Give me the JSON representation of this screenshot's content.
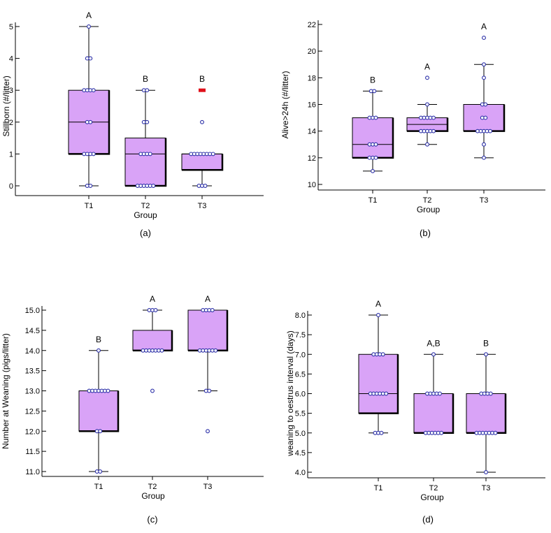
{
  "chart_data": [
    {
      "type": "box",
      "id": "a",
      "caption": "(a)",
      "xlabel": "Group",
      "ylabel": "Stillborn (#/litter)",
      "ylim": [
        0,
        5
      ],
      "yticks": [
        0,
        1,
        2,
        3,
        4,
        5
      ],
      "ytick_labels": [
        "0",
        "1",
        "2",
        "3",
        "4",
        "5"
      ],
      "categories": [
        "T1",
        "T2",
        "T3"
      ],
      "groups": [
        {
          "name": "T1",
          "q1": 1,
          "median": 2,
          "q3": 3,
          "whisker_low": 0,
          "whisker_high": 5,
          "letter": "A",
          "points": [
            0,
            0,
            1,
            1,
            1,
            1,
            2,
            2,
            3,
            3,
            3,
            3,
            4,
            4,
            5
          ]
        },
        {
          "name": "T2",
          "q1": 0,
          "median": 1,
          "q3": 1.5,
          "whisker_low": 0,
          "whisker_high": 3,
          "letter": "B",
          "points": [
            0,
            0,
            0,
            0,
            0,
            0,
            1,
            1,
            1,
            1,
            2,
            2,
            3,
            3
          ]
        },
        {
          "name": "T3",
          "q1": 0.5,
          "median": 1,
          "q3": 1,
          "whisker_low": 0,
          "whisker_high": 1,
          "letter": "B",
          "points": [
            0,
            0,
            0,
            1,
            1,
            1,
            1,
            1,
            1,
            1,
            1,
            2
          ],
          "outliers": [
            3
          ]
        }
      ]
    },
    {
      "type": "box",
      "id": "b",
      "caption": "(b)",
      "xlabel": "Group",
      "ylabel": "Alive>24h (#/litter)",
      "ylim": [
        10,
        22
      ],
      "yticks": [
        10,
        12,
        14,
        16,
        18,
        20,
        22
      ],
      "ytick_labels": [
        "10",
        "12",
        "14",
        "16",
        "18",
        "20",
        "22"
      ],
      "categories": [
        "T1",
        "T2",
        "T3"
      ],
      "groups": [
        {
          "name": "T1",
          "q1": 12,
          "median": 13,
          "q3": 15,
          "whisker_low": 11,
          "whisker_high": 17,
          "letter": "B",
          "points": [
            11,
            12,
            12,
            12,
            13,
            13,
            13,
            15,
            15,
            15,
            17,
            17
          ]
        },
        {
          "name": "T2",
          "q1": 14,
          "median": 14.5,
          "q3": 15,
          "whisker_low": 13,
          "whisker_high": 16,
          "letter": "A",
          "points": [
            13,
            14,
            14,
            14,
            14,
            14,
            15,
            15,
            15,
            15,
            15,
            16,
            18
          ]
        },
        {
          "name": "T3",
          "q1": 14,
          "median": 14,
          "q3": 16,
          "whisker_low": 12,
          "whisker_high": 19,
          "letter": "A",
          "points": [
            12,
            13,
            14,
            14,
            14,
            14,
            14,
            15,
            15,
            16,
            16,
            18,
            19,
            21
          ]
        }
      ]
    },
    {
      "type": "box",
      "id": "c",
      "caption": "(c)",
      "xlabel": "Group",
      "ylabel": "Number at Weaning (pigs/litter)",
      "ylim": [
        11.0,
        15.0
      ],
      "yticks": [
        11.0,
        11.5,
        12.0,
        12.5,
        13.0,
        13.5,
        14.0,
        14.5,
        15.0
      ],
      "ytick_labels": [
        "11.0",
        "11.5",
        "12.0",
        "12.5",
        "13.0",
        "13.5",
        "14.0",
        "14.5",
        "15.0"
      ],
      "categories": [
        "T1",
        "T2",
        "T3"
      ],
      "groups": [
        {
          "name": "T1",
          "q1": 12,
          "median": 12,
          "q3": 13,
          "whisker_low": 11,
          "whisker_high": 14,
          "letter": "B",
          "points": [
            11,
            11,
            12,
            12,
            13,
            13,
            13,
            13,
            13,
            13,
            13,
            14
          ]
        },
        {
          "name": "T2",
          "q1": 14,
          "median": 14,
          "q3": 14.5,
          "whisker_low": 14,
          "whisker_high": 15,
          "letter": "A",
          "points": [
            13,
            14,
            14,
            14,
            14,
            14,
            14,
            14,
            15,
            15,
            15
          ]
        },
        {
          "name": "T3",
          "q1": 14,
          "median": 14,
          "q3": 15,
          "whisker_low": 13,
          "whisker_high": 15,
          "letter": "A",
          "points": [
            12,
            13,
            13,
            14,
            14,
            14,
            14,
            14,
            14,
            15,
            15,
            15,
            15
          ]
        }
      ]
    },
    {
      "type": "box",
      "id": "d",
      "caption": "(d)",
      "xlabel": "Group",
      "ylabel": "weaning to oestrus interval (days)",
      "ylim": [
        4.0,
        8.0
      ],
      "yticks": [
        4.0,
        4.5,
        5.0,
        5.5,
        6.0,
        6.5,
        7.0,
        7.5,
        8.0
      ],
      "ytick_labels": [
        "4.0",
        "4.5",
        "5.0",
        "5.5",
        "6.0",
        "6.5",
        "7.0",
        "7.5",
        "8.0"
      ],
      "categories": [
        "T1",
        "T2",
        "T3"
      ],
      "groups": [
        {
          "name": "T1",
          "q1": 5.5,
          "median": 6,
          "q3": 7,
          "whisker_low": 5,
          "whisker_high": 8,
          "letter": "A",
          "points": [
            5,
            5,
            5,
            6,
            6,
            6,
            6,
            6,
            6,
            7,
            7,
            7,
            7,
            8
          ]
        },
        {
          "name": "T2",
          "q1": 5,
          "median": 5,
          "q3": 6,
          "whisker_low": 5,
          "whisker_high": 7,
          "letter": "A,B",
          "points": [
            5,
            5,
            5,
            5,
            5,
            5,
            6,
            6,
            6,
            6,
            6,
            7
          ]
        },
        {
          "name": "T3",
          "q1": 5,
          "median": 5,
          "q3": 6,
          "whisker_low": 4,
          "whisker_high": 7,
          "letter": "B",
          "points": [
            4,
            5,
            5,
            5,
            5,
            5,
            5,
            5,
            6,
            6,
            6,
            6,
            7
          ]
        }
      ]
    }
  ],
  "colors": {
    "box_fill": "#d9a3f7",
    "point_stroke": "#2b2fa8",
    "outlier": "#e0101a"
  }
}
